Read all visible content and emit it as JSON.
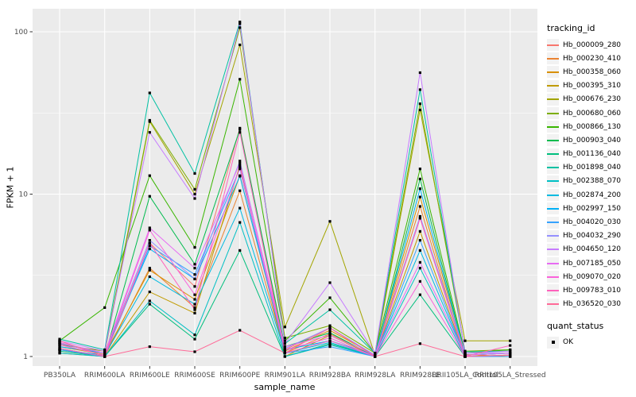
{
  "figure": {
    "background": "#FFFFFF",
    "panel_background": "#EBEBEB",
    "gridline_color": "#FFFFFF",
    "axis_text_color": "#4D4D4D",
    "point_color": "#000000"
  },
  "chart_data": {
    "type": "line",
    "title": "",
    "xlabel": "sample_name",
    "ylabel": "FPKM + 1",
    "y_scale": "log10",
    "ylim": [
      0.93,
      135
    ],
    "y_major_ticks": [
      1,
      10,
      100
    ],
    "y_major_labels": [
      "1",
      "10",
      "100"
    ],
    "y_minor_ticks": [
      3.162,
      31.62
    ],
    "grid": "on",
    "legend_position": "right",
    "categories": [
      "PB350LA",
      "RRIM600LA",
      "RRIM600LE",
      "RRIM600SE",
      "RRIM600PE",
      "RRIM901LA",
      "RRIM928BA",
      "RRIM928LA",
      "RRIM928LE",
      "RRII105LA_Control",
      "RRII105LA_Stressed"
    ],
    "legend": {
      "series_title": "tracking_id",
      "status_title": "quant_status",
      "status_label": "OK"
    },
    "series": [
      {
        "name": "Hb_000009_280",
        "color": "#F8766D",
        "values": [
          1.22,
          1.02,
          5.0,
          2.7,
          25.5,
          1.1,
          1.5,
          1.0,
          7.1,
          1.02,
          1.05
        ]
      },
      {
        "name": "Hb_000230_410",
        "color": "#EA8331",
        "values": [
          1.05,
          1.0,
          3.5,
          2.0,
          10.5,
          1.05,
          1.38,
          1.0,
          8.4,
          1.0,
          1.02
        ]
      },
      {
        "name": "Hb_000358_060",
        "color": "#D89000",
        "values": [
          1.15,
          1.03,
          3.4,
          2.25,
          13.0,
          1.08,
          1.45,
          1.02,
          9.6,
          1.03,
          1.0
        ]
      },
      {
        "name": "Hb_000395_310",
        "color": "#C09B00",
        "values": [
          1.1,
          1.0,
          2.5,
          1.85,
          15.0,
          1.0,
          1.35,
          1.0,
          5.9,
          1.0,
          1.0
        ]
      },
      {
        "name": "Hb_000676_230",
        "color": "#A3A500",
        "values": [
          1.2,
          1.05,
          28.0,
          10.0,
          83.0,
          1.52,
          6.8,
          1.02,
          33.0,
          1.25,
          1.25
        ]
      },
      {
        "name": "Hb_000680_060",
        "color": "#7CAE00",
        "values": [
          1.18,
          1.08,
          28.5,
          10.7,
          106.0,
          1.3,
          1.55,
          1.05,
          36.0,
          1.08,
          1.1
        ]
      },
      {
        "name": "Hb_000866_130",
        "color": "#39B600",
        "values": [
          1.25,
          2.0,
          13.0,
          4.7,
          51.0,
          1.25,
          2.3,
          1.05,
          14.3,
          1.05,
          1.1
        ]
      },
      {
        "name": "Hb_000903_040",
        "color": "#00BB4E",
        "values": [
          1.12,
          1.0,
          9.7,
          3.7,
          25.0,
          1.15,
          1.4,
          1.0,
          12.4,
          1.02,
          1.05
        ]
      },
      {
        "name": "Hb_001136_040",
        "color": "#00BF7D",
        "values": [
          1.08,
          1.0,
          2.1,
          1.28,
          4.5,
          1.0,
          1.2,
          1.0,
          2.4,
          1.0,
          1.0
        ]
      },
      {
        "name": "Hb_001898_040",
        "color": "#00C1A3",
        "values": [
          1.28,
          1.1,
          42.0,
          13.4,
          115.0,
          1.2,
          1.94,
          1.05,
          44.0,
          1.07,
          1.08
        ]
      },
      {
        "name": "Hb_002388_070",
        "color": "#00BFC4",
        "values": [
          1.05,
          1.0,
          2.2,
          1.36,
          6.7,
          1.0,
          1.18,
          1.0,
          3.5,
          1.0,
          1.0
        ]
      },
      {
        "name": "Hb_002874_200",
        "color": "#00BAE0",
        "values": [
          1.1,
          1.02,
          3.1,
          2.1,
          8.2,
          1.05,
          1.22,
          1.0,
          4.5,
          1.0,
          1.02
        ]
      },
      {
        "name": "Hb_002997_150",
        "color": "#00B0F6",
        "values": [
          1.15,
          1.05,
          4.6,
          3.0,
          12.9,
          1.1,
          1.25,
          1.02,
          10.8,
          1.02,
          1.05
        ]
      },
      {
        "name": "Hb_004020_030",
        "color": "#35A2FF",
        "values": [
          1.1,
          1.0,
          4.8,
          3.2,
          14.3,
          1.05,
          1.15,
          1.0,
          5.2,
          1.0,
          1.0
        ]
      },
      {
        "name": "Hb_004032_290",
        "color": "#9590FF",
        "values": [
          1.2,
          1.05,
          5.2,
          3.0,
          16.0,
          1.12,
          1.5,
          1.02,
          7.3,
          1.05,
          1.05
        ]
      },
      {
        "name": "Hb_004650_120",
        "color": "#C77CFF",
        "values": [
          1.25,
          1.08,
          24.0,
          9.4,
          112.0,
          1.2,
          2.85,
          1.05,
          56.0,
          1.05,
          1.08
        ]
      },
      {
        "name": "Hb_007185_050",
        "color": "#E76BF3",
        "values": [
          1.22,
          1.05,
          6.2,
          3.5,
          15.5,
          1.15,
          1.35,
          1.02,
          3.8,
          1.02,
          1.05
        ]
      },
      {
        "name": "Hb_009070_020",
        "color": "#FA62DB",
        "values": [
          1.18,
          1.02,
          6.0,
          2.4,
          14.5,
          1.1,
          1.3,
          1.0,
          2.9,
          1.0,
          1.02
        ]
      },
      {
        "name": "Hb_009783_010",
        "color": "#FF62BC",
        "values": [
          1.12,
          1.0,
          5.0,
          1.94,
          24.0,
          1.05,
          1.25,
          1.0,
          7.1,
          1.0,
          1.17
        ]
      },
      {
        "name": "Hb_036520_030",
        "color": "#FF6A98",
        "values": [
          1.25,
          1.0,
          1.15,
          1.07,
          1.45,
          1.05,
          1.5,
          1.0,
          1.2,
          1.0,
          1.02
        ]
      }
    ]
  }
}
